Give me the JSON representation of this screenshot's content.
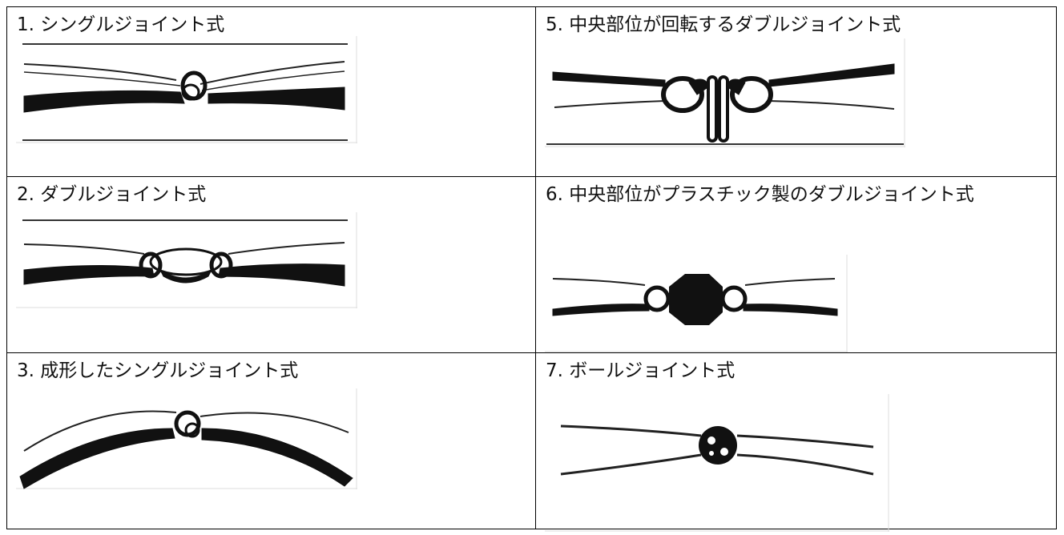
{
  "table": {
    "rows": [
      [
        "1. シングルジョイント式",
        "5. 中央部位が回転するダブルジョイント式"
      ],
      [
        "2. ダブルジョイント式",
        "6. 中央部位がプラスチック製のダブルジョイント式"
      ],
      [
        "3. 成形したシングルジョイント式",
        "7. ボールジョイント式"
      ]
    ]
  }
}
